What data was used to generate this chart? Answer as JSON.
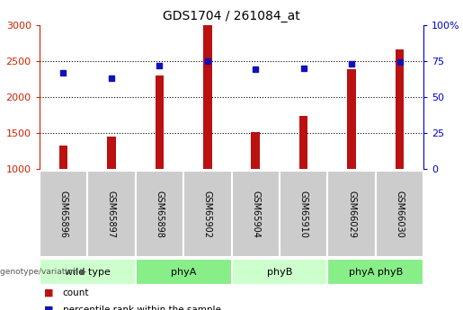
{
  "title": "GDS1704 / 261084_at",
  "samples": [
    "GSM65896",
    "GSM65897",
    "GSM65898",
    "GSM65902",
    "GSM65904",
    "GSM65910",
    "GSM66029",
    "GSM66030"
  ],
  "counts": [
    1320,
    1450,
    2300,
    3000,
    1510,
    1740,
    2380,
    2660
  ],
  "percentile_ranks": [
    67,
    63,
    72,
    75,
    69,
    70,
    73,
    74
  ],
  "groups": [
    {
      "label": "wild type",
      "start": 0,
      "end": 2,
      "color": "#ccffcc"
    },
    {
      "label": "phyA",
      "start": 2,
      "end": 4,
      "color": "#88ee88"
    },
    {
      "label": "phyB",
      "start": 4,
      "end": 6,
      "color": "#ccffcc"
    },
    {
      "label": "phyA phyB",
      "start": 6,
      "end": 8,
      "color": "#88ee88"
    }
  ],
  "ylim_left": [
    1000,
    3000
  ],
  "ylim_right": [
    0,
    100
  ],
  "bar_color": "#bb1111",
  "dot_color": "#1111bb",
  "tick_color_left": "#cc2200",
  "tick_color_right": "#0000cc",
  "grid_color": "#000000",
  "sample_box_color": "#cccccc",
  "left_ticks": [
    1000,
    1500,
    2000,
    2500,
    3000
  ],
  "right_ticks": [
    0,
    25,
    50,
    75,
    100
  ],
  "right_tick_labels": [
    "0",
    "25",
    "50",
    "75",
    "100%"
  ]
}
